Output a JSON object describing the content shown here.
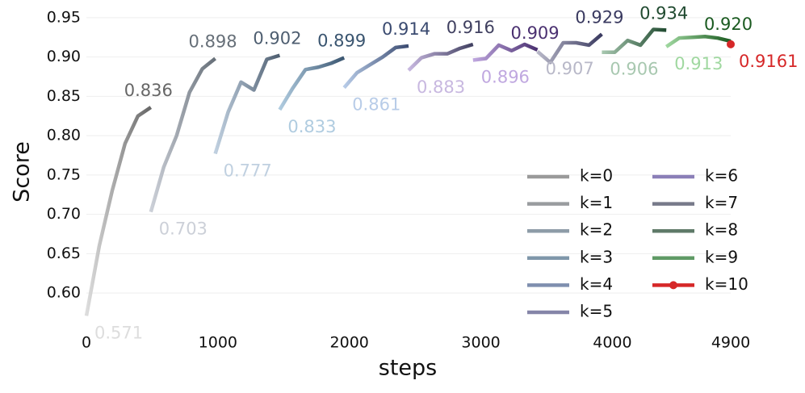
{
  "chart_data": {
    "type": "line",
    "x_label": "steps",
    "y_label": "Score",
    "xlim": [
      0,
      4900
    ],
    "xticks": [
      0,
      1000,
      2000,
      3000,
      4000,
      4900
    ],
    "ylim": [
      0.557,
      0.957
    ],
    "yticks": [
      {
        "value": 0.6,
        "label": "0.60"
      },
      0.65,
      {
        "value": 0.7,
        "label": "0.70"
      },
      0.75,
      {
        "value": 0.8,
        "label": "0.80"
      },
      0.85,
      {
        "value": 0.9,
        "label": "0.90"
      },
      0.95
    ],
    "grid": true,
    "legend": "lower right",
    "series": [
      {
        "name": "k=0",
        "color": "#9a9a9a",
        "line_colors": [
          "#dddddd",
          "#666666"
        ],
        "x": [
          0,
          98,
          196,
          294,
          392,
          490
        ],
        "values": [
          0.571,
          0.66,
          0.73,
          0.79,
          0.825,
          0.836
        ]
      },
      {
        "name": "k=1",
        "color": "#999c9f",
        "line_colors": [
          "#ccd0d8",
          "#666f78"
        ],
        "x": [
          490,
          588,
          686,
          784,
          882,
          980
        ],
        "values": [
          0.703,
          0.76,
          0.8,
          0.855,
          0.885,
          0.898
        ]
      },
      {
        "name": "k=2",
        "color": "#8e9ca8",
        "line_colors": [
          "#c0d0e0",
          "#4e5e70"
        ],
        "x": [
          980,
          1078,
          1176,
          1274,
          1372,
          1470
        ],
        "values": [
          0.777,
          0.83,
          0.868,
          0.858,
          0.897,
          0.902
        ]
      },
      {
        "name": "k=3",
        "color": "#7f97aa",
        "line_colors": [
          "#b0cce0",
          "#3a5570"
        ],
        "x": [
          1470,
          1568,
          1666,
          1764,
          1862,
          1960
        ],
        "values": [
          0.833,
          0.86,
          0.884,
          0.887,
          0.892,
          0.899
        ]
      },
      {
        "name": "k=4",
        "color": "#7f8faf",
        "line_colors": [
          "#b8cce8",
          "#3a4a70"
        ],
        "x": [
          1960,
          2058,
          2156,
          2254,
          2352,
          2450
        ],
        "values": [
          0.861,
          0.88,
          0.89,
          0.9,
          0.912,
          0.914
        ]
      },
      {
        "name": "k=5",
        "color": "#8585a8",
        "line_colors": [
          "#c8b8e0",
          "#404060"
        ],
        "x": [
          2450,
          2548,
          2646,
          2744,
          2842,
          2940
        ],
        "values": [
          0.883,
          0.899,
          0.904,
          0.904,
          0.911,
          0.916
        ]
      },
      {
        "name": "k=6",
        "color": "#8b7fb8",
        "line_colors": [
          "#c0a8e0",
          "#4a3070"
        ],
        "x": [
          2940,
          3038,
          3136,
          3234,
          3332,
          3430
        ],
        "values": [
          0.896,
          0.898,
          0.915,
          0.908,
          0.916,
          0.909
        ]
      },
      {
        "name": "k=7",
        "color": "#777a8a",
        "line_colors": [
          "#b8b8c8",
          "#3a3a60"
        ],
        "x": [
          3430,
          3528,
          3626,
          3724,
          3822,
          3920
        ],
        "values": [
          0.907,
          0.893,
          0.918,
          0.918,
          0.915,
          0.929
        ]
      },
      {
        "name": "k=8",
        "color": "#5f7a68",
        "line_colors": [
          "#a8c8b0",
          "#204a30"
        ],
        "x": [
          3920,
          4018,
          4116,
          4214,
          4312,
          4410
        ],
        "values": [
          0.906,
          0.906,
          0.921,
          0.915,
          0.935,
          0.934
        ]
      },
      {
        "name": "k=9",
        "color": "#5f9a65",
        "line_colors": [
          "#a0d8a0",
          "#1a5a20"
        ],
        "x": [
          4410,
          4508,
          4606,
          4704,
          4802,
          4900
        ],
        "values": [
          0.913,
          0.924,
          0.925,
          0.926,
          0.924,
          0.92
        ],
        "value_labels": [
          "0.913",
          null,
          null,
          null,
          null,
          "0.920"
        ]
      },
      {
        "name": "k=10",
        "color": "#d62728",
        "line_colors": [
          "#d62728",
          "#d62728"
        ],
        "marker": true,
        "x": [
          4900
        ],
        "values": [
          0.9161
        ]
      }
    ]
  }
}
